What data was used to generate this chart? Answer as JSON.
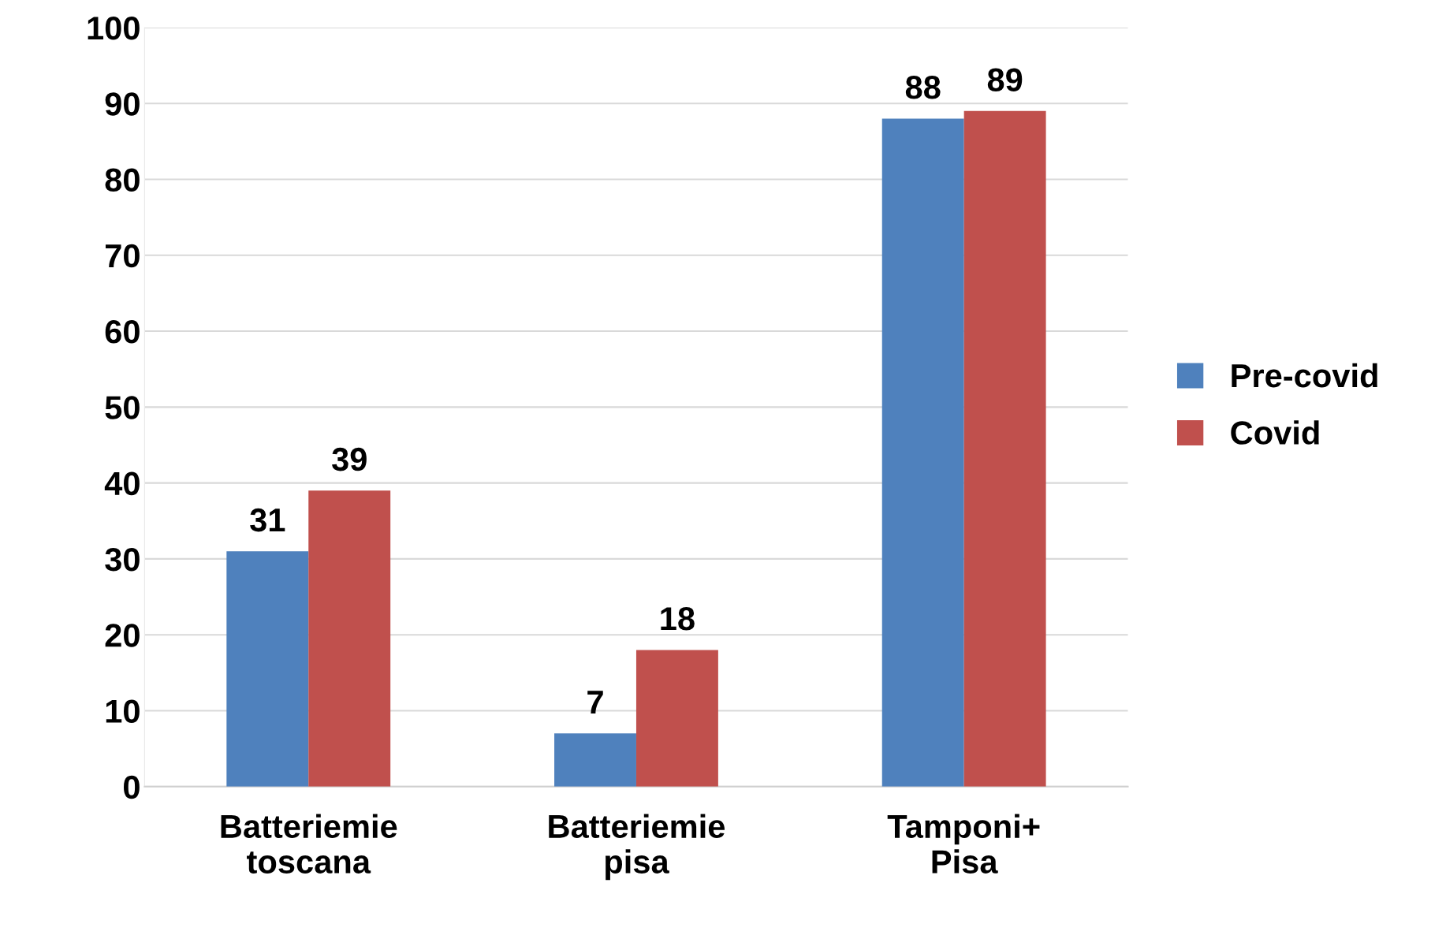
{
  "chart_data": {
    "type": "bar",
    "categories": [
      "Batteriemie\ntoscana",
      "Batteriemie\npisa",
      "Tamponi+\nPisa"
    ],
    "series": [
      {
        "name": "Pre-covid",
        "color": "#4f81bd",
        "values": [
          31,
          7,
          88
        ]
      },
      {
        "name": "Covid",
        "color": "#c0504d",
        "values": [
          39,
          18,
          89
        ]
      }
    ],
    "ylim": [
      0,
      100
    ],
    "yticks": [
      0,
      10,
      20,
      30,
      40,
      50,
      60,
      70,
      80,
      90,
      100
    ],
    "grid": "y",
    "legend": "right",
    "data_labels": true
  }
}
